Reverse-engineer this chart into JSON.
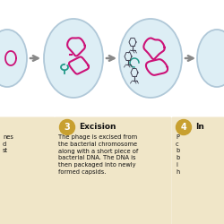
{
  "bg_color": "#ffffff",
  "panel_bg": "#f0e6c8",
  "cell_fill": "#ddeef5",
  "cell_edge": "#b0c8d8",
  "arrow_color": "#888888",
  "dna_pink": "#cc1177",
  "dna_teal": "#229988",
  "phage_color": "#444455",
  "num_circle_color": "#c8a030",
  "title3": "Excision",
  "body3": "The phage is excised from\nthe bacterial chromosome\nalong with a short piece of\nbacterial DNA. The DNA is\nthen packaged into newly\nformed capsids.",
  "num3": "3",
  "num4": "4",
  "title4": "In",
  "left_text": "nes\nd\nst",
  "right_text": "P\nc\nb\nb\ni\nh",
  "figw": 2.5,
  "figh": 2.5,
  "dpi": 100
}
